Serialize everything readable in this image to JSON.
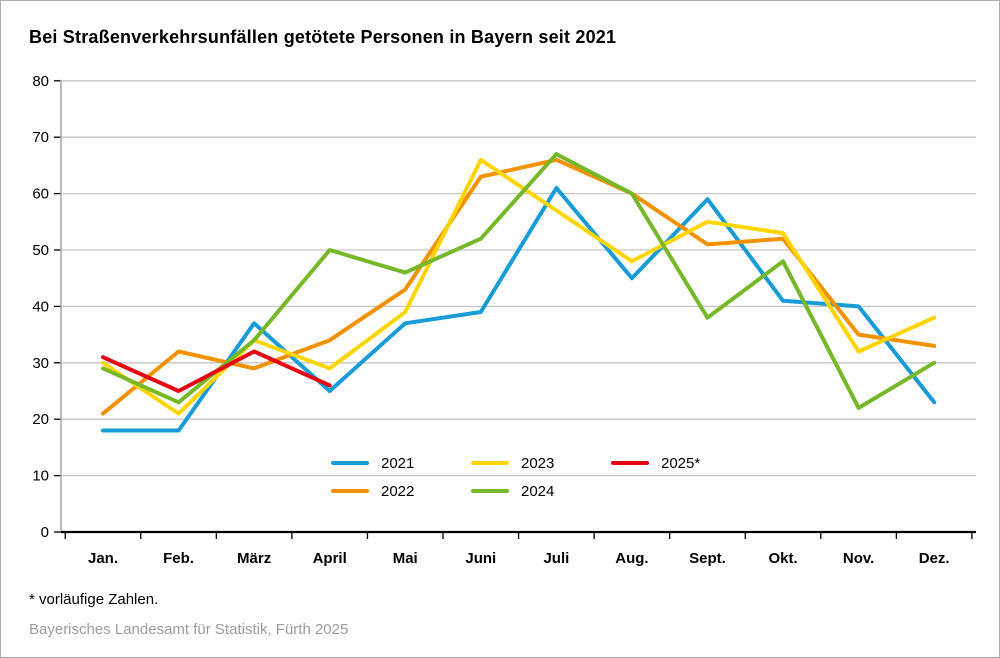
{
  "title": "Bei Straßenverkehrsunfällen getötete Personen in Bayern seit 2021",
  "footnote": "* vorläufige Zahlen.",
  "source": "Bayerisches Landesamt für Statistik, Fürth 2025",
  "chart_data": {
    "type": "line",
    "title": "Bei Straßenverkehrsunfällen getötete Personen in Bayern seit 2021",
    "categories": [
      "Jan.",
      "Feb.",
      "März",
      "April",
      "Mai",
      "Juni",
      "Juli",
      "Aug.",
      "Sept.",
      "Okt.",
      "Nov.",
      "Dez."
    ],
    "series": [
      {
        "name": "2021",
        "color": "#189cd8",
        "values": [
          18,
          18,
          37,
          25,
          37,
          39,
          61,
          45,
          59,
          41,
          40,
          23
        ]
      },
      {
        "name": "2022",
        "color": "#f39200",
        "values": [
          21,
          32,
          29,
          34,
          43,
          63,
          66,
          60,
          51,
          52,
          35,
          33
        ]
      },
      {
        "name": "2023",
        "color": "#ffd500",
        "values": [
          30,
          21,
          34,
          29,
          39,
          66,
          57,
          48,
          55,
          53,
          32,
          38
        ]
      },
      {
        "name": "2024",
        "color": "#76b82a",
        "values": [
          29,
          23,
          34,
          50,
          46,
          52,
          67,
          60,
          38,
          48,
          22,
          30
        ]
      },
      {
        "name": "2025*",
        "color": "#e30613",
        "values": [
          31,
          25,
          32,
          26
        ]
      }
    ],
    "ylim": [
      0,
      80
    ],
    "ytick_step": 10,
    "grid": true,
    "legend_position": "inside-bottom-center",
    "colors": {
      "grid": "#c6c6c6",
      "axis_y": "#a6a6a6",
      "axis_x": "#000000",
      "tick": "#000000",
      "label": "#000000"
    }
  }
}
